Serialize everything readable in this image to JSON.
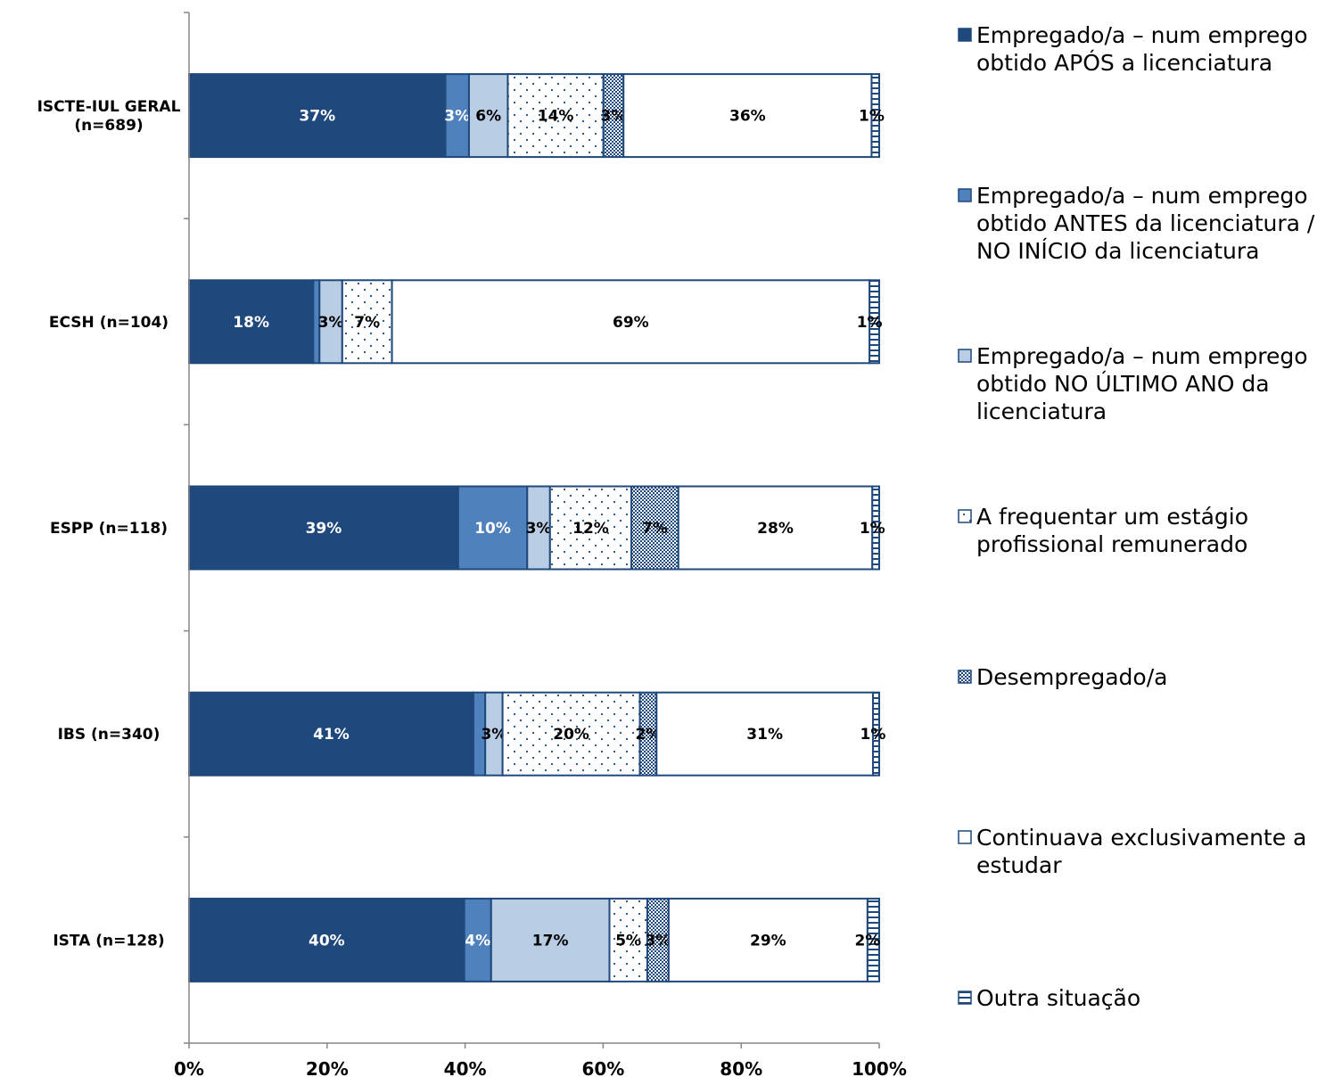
{
  "chart_data": {
    "type": "bar",
    "orientation": "horizontal",
    "stacked": "percent",
    "categories": [
      "ISCTE-IUL GERAL\n(n=689)",
      "ECSH (n=104)",
      "ESPP (n=118)",
      "IBS (n=340)",
      "ISTA (n=128)"
    ],
    "series": [
      {
        "name": "Empregado/a – num emprego obtido APÓS a licenciatura",
        "values": [
          37,
          18,
          39,
          41,
          40
        ],
        "labels": [
          "37%",
          "18%",
          "39%",
          "41%",
          "40%"
        ],
        "color": "#1f497d",
        "pattern": "solid"
      },
      {
        "name": "Empregado/a – num emprego obtido ANTES da licenciatura / NO INÍCIO da licenciatura",
        "values": [
          3.4,
          0.9,
          10,
          1.7,
          3.9
        ],
        "labels": [
          "3%",
          "1%",
          "10%",
          "2%",
          "4%"
        ],
        "color": "#4f81bd",
        "pattern": "solid"
      },
      {
        "name": "Empregado/a – num emprego obtido NO ÚLTIMO ANO da licenciatura",
        "values": [
          5.6,
          3.3,
          3.3,
          2.5,
          17.2
        ],
        "labels": [
          "6%",
          "3%",
          "3%",
          "3%",
          "17%"
        ],
        "color": "#b9cde5",
        "pattern": "solid"
      },
      {
        "name": "A frequentar um estágio profissional remunerado",
        "values": [
          13.8,
          7.2,
          11.8,
          19.8,
          5.5
        ],
        "labels": [
          "14%",
          "7%",
          "12%",
          "20%",
          "5%"
        ],
        "color": "#ffffff",
        "pattern": "dots"
      },
      {
        "name": "Desempregado/a",
        "values": [
          2.9,
          0,
          6.8,
          2.4,
          3.1
        ],
        "labels": [
          "3%",
          "",
          "7%",
          "2%",
          "3%"
        ],
        "color": "#ffffff",
        "pattern": "crosshatch"
      },
      {
        "name": "Continuava exclusivamente a estudar",
        "values": [
          35.8,
          69.2,
          28.1,
          31.2,
          28.9
        ],
        "labels": [
          "36%",
          "69%",
          "28%",
          "31%",
          "29%"
        ],
        "color": "#ffffff",
        "pattern": "none"
      },
      {
        "name": "Outra situação",
        "values": [
          1.1,
          1.4,
          1.0,
          0.9,
          1.7
        ],
        "labels": [
          "1%",
          "1%",
          "1%",
          "1%",
          "2%"
        ],
        "color": "#ffffff",
        "pattern": "hbars"
      }
    ],
    "xlim": [
      0,
      100
    ],
    "xticks": [
      "0%",
      "20%",
      "40%",
      "60%",
      "80%",
      "100%"
    ],
    "legend_position": "right",
    "grid": false,
    "title": "",
    "xlabel": "",
    "ylabel": ""
  }
}
